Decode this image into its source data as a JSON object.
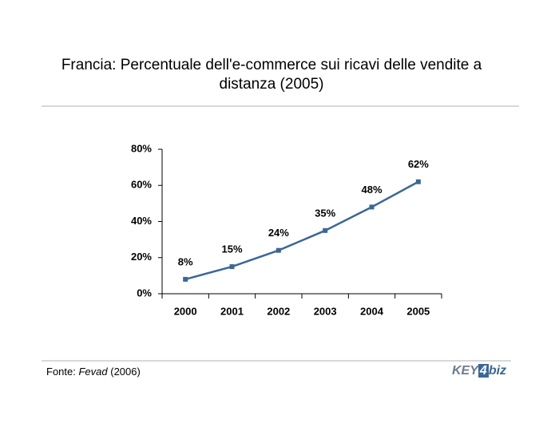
{
  "chart_data": {
    "type": "line",
    "title": "Francia: Percentuale dell'e-commerce sui ricavi delle vendite a distanza (2005)",
    "categories": [
      "2000",
      "2001",
      "2002",
      "2003",
      "2004",
      "2005"
    ],
    "series": [
      {
        "name": null,
        "color": "#3a6797",
        "values": [
          8,
          15,
          24,
          35,
          48,
          62
        ],
        "value_labels": [
          "8%",
          "15%",
          "24%",
          "35%",
          "48%",
          "62%"
        ]
      }
    ],
    "ylim": [
      0,
      80
    ],
    "yticks": [
      {
        "value": 0,
        "label": "0%"
      },
      {
        "value": 20,
        "label": "20%"
      },
      {
        "value": 40,
        "label": "40%"
      },
      {
        "value": 60,
        "label": "60%"
      },
      {
        "value": 80,
        "label": "80%"
      }
    ],
    "grid": false
  },
  "footer": {
    "source_label": "Fonte:",
    "source_name": "Fevad",
    "source_year": "(2006)",
    "logo": {
      "left": "KEY",
      "mid": "4",
      "right": "biz"
    }
  }
}
